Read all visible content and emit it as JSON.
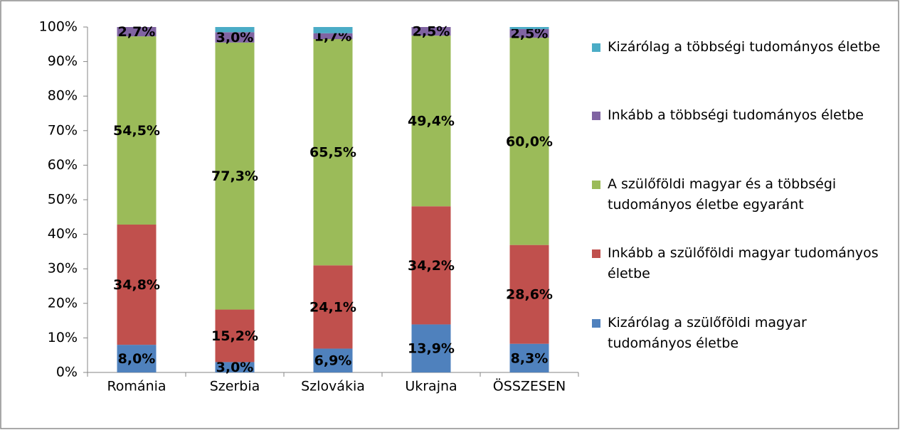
{
  "chart_data": {
    "type": "stacked_bar",
    "categories": [
      "Románia",
      "Szerbia",
      "Szlovákia",
      "Ukrajna",
      "ÖSSZESEN"
    ],
    "series": [
      {
        "name": "Kizárólag a szülőföldi magyar tudományos életbe",
        "color": "#4f81bd",
        "values": [
          8.0,
          3.0,
          6.9,
          13.9,
          8.3
        ],
        "value_labels": [
          "8,0%",
          "3,0%",
          "6,9%",
          "13,9%",
          "8,3%"
        ]
      },
      {
        "name": "Inkább a szülőföldi magyar tudományos életbe",
        "color": "#c0504d",
        "values": [
          34.8,
          15.2,
          24.1,
          34.2,
          28.6
        ],
        "value_labels": [
          "34,8%",
          "15,2%",
          "24,1%",
          "34,2%",
          "28,6%"
        ]
      },
      {
        "name": "A szülőföldi magyar és a többségi tudományos életbe egyaránt",
        "color": "#9bbb59",
        "values": [
          54.5,
          77.3,
          65.5,
          49.4,
          60.0
        ],
        "value_labels": [
          "54,5%",
          "77,3%",
          "65,5%",
          "49,4%",
          "60,0%"
        ]
      },
      {
        "name": "Inkább a többségi tudományos életbe",
        "color": "#8064a2",
        "values": [
          2.7,
          3.0,
          1.7,
          2.5,
          2.5
        ],
        "value_labels": [
          "2,7%",
          "3,0%",
          "1,7%",
          "2,5%",
          "2,5%"
        ]
      },
      {
        "name": "Kizárólag a többségi tudományos életbe",
        "color": "#4bacc6",
        "values": [
          0,
          1.5,
          1.8,
          0,
          0.6
        ]
      }
    ],
    "ylim": [
      0,
      100
    ],
    "yticks": [
      {
        "value": 0,
        "label": "0%"
      },
      {
        "value": 10,
        "label": "10%"
      },
      {
        "value": 20,
        "label": "20%"
      },
      {
        "value": 30,
        "label": "30%"
      },
      {
        "value": 40,
        "label": "40%"
      },
      {
        "value": 50,
        "label": "50%"
      },
      {
        "value": 60,
        "label": "60%"
      },
      {
        "value": 70,
        "label": "70%"
      },
      {
        "value": 80,
        "label": "80%"
      },
      {
        "value": 90,
        "label": "90%"
      },
      {
        "value": 100,
        "label": "100%"
      }
    ],
    "grid": false,
    "legend": "right"
  }
}
